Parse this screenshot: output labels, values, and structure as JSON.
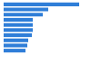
{
  "chart_data": {
    "type": "bar",
    "orientation": "horizontal",
    "categories": [
      null,
      null,
      null,
      null,
      null,
      null,
      null,
      null,
      null,
      null
    ],
    "values": [
      83,
      49,
      43,
      32,
      32,
      32,
      31,
      27,
      26,
      24
    ],
    "color": "#2f7ed8",
    "xlim": [
      0,
      92
    ],
    "grid": false,
    "tick_labels": false
  }
}
